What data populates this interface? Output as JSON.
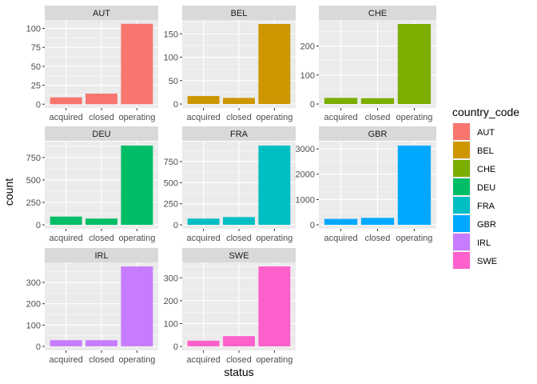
{
  "chart_data": {
    "type": "bar",
    "facet_variable": "country_code",
    "xlabel": "status",
    "ylabel": "count",
    "categories": [
      "acquired",
      "closed",
      "operating"
    ],
    "legend": {
      "title": "country_code",
      "placement": "right"
    },
    "grid": true,
    "facets": [
      {
        "name": "AUT",
        "color": "#F8766D",
        "values": [
          9,
          14,
          106
        ],
        "ylim": [
          -5,
          111
        ],
        "yticks": [
          0,
          25,
          50,
          75,
          100
        ],
        "tick_labels": [
          "0",
          "25",
          "50",
          "75",
          "100"
        ]
      },
      {
        "name": "BEL",
        "color": "#CD9600",
        "values": [
          17,
          13,
          171
        ],
        "ylim": [
          -8.5,
          179.5
        ],
        "yticks": [
          0,
          50,
          100,
          150
        ],
        "tick_labels": [
          "0",
          "50",
          "100",
          "150"
        ]
      },
      {
        "name": "CHE",
        "color": "#7CAE00",
        "values": [
          21,
          20,
          276
        ],
        "ylim": [
          -13.8,
          289.8
        ],
        "yticks": [
          0,
          100,
          200
        ],
        "tick_labels": [
          "0",
          "100",
          "200"
        ]
      },
      {
        "name": "DEU",
        "color": "#00BE67",
        "values": [
          92,
          70,
          883
        ],
        "ylim": [
          -44,
          927
        ],
        "yticks": [
          0,
          250,
          500,
          750
        ],
        "tick_labels": [
          "0",
          "250",
          "500",
          "750"
        ]
      },
      {
        "name": "FRA",
        "color": "#00BFC4",
        "values": [
          74,
          92,
          940
        ],
        "ylim": [
          -47,
          987
        ],
        "yticks": [
          0,
          250,
          500,
          750
        ],
        "tick_labels": [
          "0",
          "250",
          "500",
          "750"
        ]
      },
      {
        "name": "GBR",
        "color": "#00A9FF",
        "values": [
          235,
          275,
          3130
        ],
        "ylim": [
          -156,
          3286
        ],
        "yticks": [
          0,
          1000,
          2000,
          3000
        ],
        "tick_labels": [
          "0",
          "1000",
          "2000",
          "3000"
        ]
      },
      {
        "name": "IRL",
        "color": "#C77CFF",
        "values": [
          29,
          29,
          375
        ],
        "ylim": [
          -19,
          394
        ],
        "yticks": [
          0,
          100,
          200,
          300
        ],
        "tick_labels": [
          "0",
          "100",
          "200",
          "300"
        ]
      },
      {
        "name": "SWE",
        "color": "#FF61CC",
        "values": [
          25,
          45,
          350
        ],
        "ylim": [
          -17.5,
          367.5
        ],
        "yticks": [
          0,
          100,
          200,
          300
        ],
        "tick_labels": [
          "0",
          "100",
          "200",
          "300"
        ]
      }
    ]
  }
}
